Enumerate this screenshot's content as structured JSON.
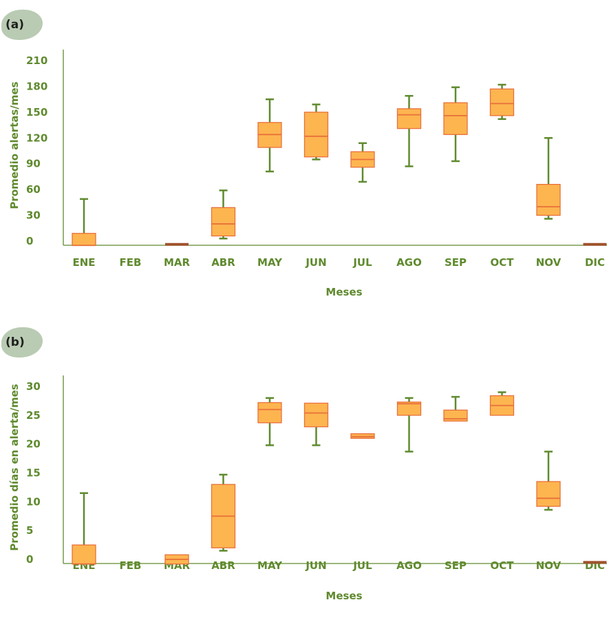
{
  "colors": {
    "axis": "#5f8a2e",
    "box_fill": "#fdb550",
    "box_stroke": "#e8703a",
    "whisker": "#5f8a2e",
    "zero_bar": "#a0522d"
  },
  "chart_data": [
    {
      "panel": "(a)",
      "type": "box",
      "xlabel": "Meses",
      "ylabel": "Promedio alertas/mes",
      "ylim": [
        0,
        210
      ],
      "yticks": [
        0,
        30,
        60,
        90,
        120,
        150,
        180,
        210
      ],
      "categories": [
        "ENE",
        "FEB",
        "MAR",
        "ABR",
        "MAY",
        "JUN",
        "JUL",
        "AGO",
        "SEP",
        "OCT",
        "NOV",
        "DIC"
      ],
      "boxes": [
        {
          "min": -5,
          "q1": -5,
          "median": -5,
          "q3": 9,
          "max": 49
        },
        null,
        {
          "min": -5,
          "q1": -5,
          "median": -5,
          "q3": -3,
          "max": -3
        },
        {
          "min": 3,
          "q1": 6,
          "median": 20,
          "q3": 39,
          "max": 59
        },
        {
          "min": 81,
          "q1": 109,
          "median": 124,
          "q3": 138,
          "max": 165
        },
        {
          "min": 95,
          "q1": 98,
          "median": 122,
          "q3": 150,
          "max": 159
        },
        {
          "min": 69,
          "q1": 86,
          "median": 95,
          "q3": 104,
          "max": 114
        },
        {
          "min": 87,
          "q1": 131,
          "median": 147,
          "q3": 154,
          "max": 169
        },
        {
          "min": 93,
          "q1": 124,
          "median": 146,
          "q3": 161,
          "max": 179
        },
        {
          "min": 142,
          "q1": 146,
          "median": 160,
          "q3": 177,
          "max": 182
        },
        {
          "min": 26,
          "q1": 30,
          "median": 40,
          "q3": 66,
          "max": 120
        },
        {
          "min": -5,
          "q1": -5,
          "median": -5,
          "q3": -3,
          "max": -3
        }
      ]
    },
    {
      "panel": "(b)",
      "type": "box",
      "xlabel": "Meses",
      "ylabel": "Promedio días en alerta/mes",
      "ylim": [
        0,
        30
      ],
      "yticks": [
        0,
        5,
        10,
        15,
        20,
        25,
        30
      ],
      "categories": [
        "ENE",
        "FEB",
        "MAR",
        "ABR",
        "MAY",
        "JUN",
        "JUL",
        "AGO",
        "SEP",
        "OCT",
        "NOV",
        "DIC"
      ],
      "boxes": [
        {
          "min": -0.8,
          "q1": -0.8,
          "median": -0.8,
          "q3": 2.5,
          "max": 11.5
        },
        null,
        {
          "min": -0.8,
          "q1": -0.8,
          "median": 0,
          "q3": 0.8,
          "max": 0.8
        },
        {
          "min": 1.5,
          "q1": 2,
          "median": 7.5,
          "q3": 13,
          "max": 14.7
        },
        {
          "min": 19.8,
          "q1": 23.7,
          "median": 26,
          "q3": 27.2,
          "max": 28
        },
        {
          "min": 19.8,
          "q1": 23,
          "median": 25.4,
          "q3": 27.1,
          "max": 27.1
        },
        {
          "min": 21,
          "q1": 21,
          "median": 21.3,
          "q3": 21.8,
          "max": 21.8
        },
        {
          "min": 18.7,
          "q1": 25,
          "median": 27,
          "q3": 27.3,
          "max": 28
        },
        {
          "min": 24,
          "q1": 24,
          "median": 24.4,
          "q3": 25.9,
          "max": 28.2
        },
        {
          "min": 25,
          "q1": 25,
          "median": 26.7,
          "q3": 28.4,
          "max": 29
        },
        {
          "min": 8.6,
          "q1": 9.2,
          "median": 10.6,
          "q3": 13.5,
          "max": 18.7
        },
        {
          "min": -0.8,
          "q1": -0.8,
          "median": -0.8,
          "q3": -0.4,
          "max": -0.4
        }
      ]
    }
  ]
}
